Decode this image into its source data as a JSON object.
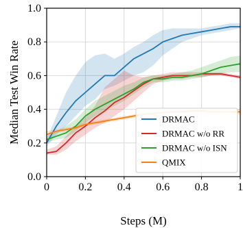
{
  "chart_data": {
    "type": "line",
    "title": "",
    "xlabel": "Steps (M)",
    "ylabel": "Median Test Win Rate",
    "xlim": [
      0,
      1
    ],
    "ylim": [
      0,
      1
    ],
    "xticks": [
      0,
      0.2,
      0.4,
      0.6,
      0.8,
      1
    ],
    "xtick_labels": [
      "0",
      "0.2",
      "0.4",
      "0.6",
      "0.8",
      "1"
    ],
    "yticks": [
      0,
      0.2,
      0.4,
      0.6,
      0.8,
      1
    ],
    "ytick_labels": [
      "0.0",
      "0.2",
      "0.4",
      "0.6",
      "0.8",
      "1.0"
    ],
    "grid": true,
    "legend_position": "bottom-right",
    "series": [
      {
        "name": "DRMAC",
        "color": "#1f77b4",
        "x": [
          0,
          0.05,
          0.1,
          0.15,
          0.2,
          0.25,
          0.3,
          0.35,
          0.4,
          0.45,
          0.5,
          0.55,
          0.6,
          0.65,
          0.7,
          0.75,
          0.8,
          0.85,
          0.9,
          0.95,
          1.0
        ],
        "y": [
          0.2,
          0.3,
          0.38,
          0.45,
          0.5,
          0.55,
          0.6,
          0.6,
          0.65,
          0.7,
          0.73,
          0.76,
          0.8,
          0.82,
          0.84,
          0.85,
          0.86,
          0.87,
          0.88,
          0.89,
          0.89
        ],
        "lower": [
          0.18,
          0.25,
          0.3,
          0.36,
          0.42,
          0.46,
          0.52,
          0.54,
          0.57,
          0.6,
          0.62,
          0.66,
          0.72,
          0.76,
          0.8,
          0.82,
          0.84,
          0.85,
          0.86,
          0.87,
          0.88
        ],
        "upper": [
          0.22,
          0.36,
          0.5,
          0.6,
          0.68,
          0.72,
          0.73,
          0.7,
          0.73,
          0.77,
          0.8,
          0.84,
          0.87,
          0.88,
          0.88,
          0.88,
          0.88,
          0.89,
          0.9,
          0.91,
          0.91
        ]
      },
      {
        "name": "DRMAC w/o RR",
        "color": "#d62728",
        "x": [
          0,
          0.05,
          0.1,
          0.15,
          0.2,
          0.25,
          0.3,
          0.35,
          0.4,
          0.45,
          0.5,
          0.55,
          0.6,
          0.65,
          0.7,
          0.75,
          0.8,
          0.85,
          0.9,
          0.95,
          1.0
        ],
        "y": [
          0.14,
          0.15,
          0.2,
          0.26,
          0.3,
          0.35,
          0.39,
          0.44,
          0.47,
          0.51,
          0.55,
          0.58,
          0.59,
          0.6,
          0.6,
          0.6,
          0.61,
          0.61,
          0.61,
          0.6,
          0.59
        ],
        "lower": [
          0.13,
          0.13,
          0.16,
          0.21,
          0.25,
          0.29,
          0.32,
          0.36,
          0.4,
          0.45,
          0.5,
          0.55,
          0.57,
          0.58,
          0.58,
          0.59,
          0.59,
          0.6,
          0.6,
          0.59,
          0.58
        ],
        "upper": [
          0.16,
          0.18,
          0.24,
          0.3,
          0.35,
          0.42,
          0.53,
          0.58,
          0.63,
          0.6,
          0.59,
          0.6,
          0.61,
          0.62,
          0.62,
          0.62,
          0.62,
          0.62,
          0.62,
          0.61,
          0.6
        ]
      },
      {
        "name": "DRMAC w/o ISN",
        "color": "#2ca02c",
        "x": [
          0,
          0.05,
          0.1,
          0.15,
          0.2,
          0.25,
          0.3,
          0.35,
          0.4,
          0.45,
          0.5,
          0.55,
          0.6,
          0.65,
          0.7,
          0.75,
          0.8,
          0.85,
          0.9,
          0.95,
          1.0
        ],
        "y": [
          0.22,
          0.24,
          0.26,
          0.3,
          0.36,
          0.4,
          0.43,
          0.46,
          0.49,
          0.52,
          0.56,
          0.58,
          0.58,
          0.59,
          0.59,
          0.6,
          0.61,
          0.63,
          0.65,
          0.66,
          0.67
        ],
        "lower": [
          0.2,
          0.22,
          0.23,
          0.27,
          0.32,
          0.36,
          0.39,
          0.42,
          0.45,
          0.49,
          0.53,
          0.56,
          0.56,
          0.57,
          0.57,
          0.58,
          0.59,
          0.6,
          0.61,
          0.62,
          0.62
        ],
        "upper": [
          0.24,
          0.27,
          0.3,
          0.34,
          0.4,
          0.45,
          0.48,
          0.51,
          0.54,
          0.56,
          0.59,
          0.6,
          0.6,
          0.61,
          0.62,
          0.63,
          0.65,
          0.67,
          0.69,
          0.71,
          0.72
        ]
      },
      {
        "name": "QMIX",
        "color": "#ff7f0e",
        "x": [
          0,
          0.05,
          0.1,
          0.15,
          0.2,
          0.25,
          0.3,
          0.35,
          0.4,
          0.45,
          0.5,
          0.55,
          0.6,
          0.65,
          0.7,
          0.75,
          0.8,
          0.85,
          0.9,
          0.95,
          1.0
        ],
        "y": [
          0.25,
          0.27,
          0.28,
          0.29,
          0.31,
          0.32,
          0.33,
          0.34,
          0.35,
          0.36,
          0.37,
          0.375,
          0.38,
          0.385,
          0.385,
          0.39,
          0.39,
          0.385,
          0.385,
          0.385,
          0.385
        ],
        "lower": [
          0.24,
          0.26,
          0.27,
          0.28,
          0.3,
          0.31,
          0.32,
          0.33,
          0.34,
          0.35,
          0.36,
          0.365,
          0.37,
          0.375,
          0.375,
          0.38,
          0.38,
          0.375,
          0.37,
          0.37,
          0.37
        ],
        "upper": [
          0.27,
          0.28,
          0.29,
          0.3,
          0.32,
          0.33,
          0.34,
          0.35,
          0.36,
          0.37,
          0.38,
          0.385,
          0.39,
          0.395,
          0.395,
          0.4,
          0.4,
          0.4,
          0.4,
          0.4,
          0.4
        ]
      }
    ]
  }
}
